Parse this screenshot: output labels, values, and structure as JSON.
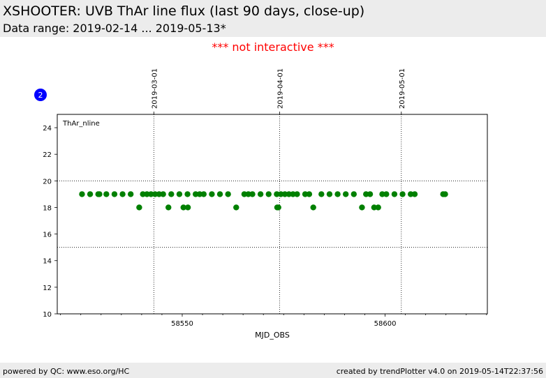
{
  "header": {
    "title": "XSHOOTER: UVB ThAr line flux (last 90 days, close-up)",
    "subtitle": "Data range: 2019-02-14 ... 2019-05-13*"
  },
  "notice": "*** not interactive ***",
  "footer": {
    "left": "powered by QC: www.eso.org/HC",
    "right": "created by trendPlotter v4.0 on 2019-05-14T22:37:56"
  },
  "badge": "2",
  "colors": {
    "points": "#008000",
    "badge": "#0000ff",
    "notice": "#ff0000"
  },
  "chart_data": {
    "type": "scatter",
    "panel_label": "ThAr_nline",
    "xlabel": "MJD_OBS",
    "ylabel": "",
    "xlim": [
      58519.2,
      58625.2
    ],
    "ylim": [
      10,
      25
    ],
    "x_ticks": [
      58550,
      58600
    ],
    "y_ticks": [
      10,
      12,
      14,
      16,
      18,
      20,
      22,
      24
    ],
    "top_date_ticks": [
      {
        "label": "2019-03-01",
        "x": 58543
      },
      {
        "label": "2019-04-01",
        "x": 58574
      },
      {
        "label": "2019-05-01",
        "x": 58604
      }
    ],
    "reference_lines": [
      20,
      15
    ],
    "series": [
      {
        "points": [
          [
            58525.3,
            19
          ],
          [
            58527.3,
            19
          ],
          [
            58529.3,
            19
          ],
          [
            58529.6,
            19
          ],
          [
            58531.3,
            19
          ],
          [
            58533.3,
            19
          ],
          [
            58535.3,
            19
          ],
          [
            58537.3,
            19
          ],
          [
            58539.4,
            18
          ],
          [
            58540.3,
            19
          ],
          [
            58541.3,
            19
          ],
          [
            58542.3,
            19
          ],
          [
            58543.3,
            19
          ],
          [
            58544.3,
            19
          ],
          [
            58545.3,
            19
          ],
          [
            58546.6,
            18
          ],
          [
            58547.3,
            19
          ],
          [
            58549.3,
            19
          ],
          [
            58550.3,
            18
          ],
          [
            58551.3,
            19
          ],
          [
            58551.4,
            18
          ],
          [
            58553.3,
            19
          ],
          [
            58554.3,
            19
          ],
          [
            58555.3,
            19
          ],
          [
            58557.3,
            19
          ],
          [
            58559.3,
            19
          ],
          [
            58561.3,
            19
          ],
          [
            58563.3,
            18
          ],
          [
            58565.3,
            19
          ],
          [
            58566.3,
            19
          ],
          [
            58567.3,
            19
          ],
          [
            58569.3,
            19
          ],
          [
            58571.3,
            19
          ],
          [
            58573.3,
            19
          ],
          [
            58573.4,
            18
          ],
          [
            58573.7,
            18
          ],
          [
            58574.3,
            19
          ],
          [
            58575.3,
            19
          ],
          [
            58576.3,
            19
          ],
          [
            58577.3,
            19
          ],
          [
            58578.3,
            19
          ],
          [
            58580.3,
            19
          ],
          [
            58581.3,
            19
          ],
          [
            58582.3,
            18
          ],
          [
            58584.3,
            19
          ],
          [
            58586.3,
            19
          ],
          [
            58588.3,
            19
          ],
          [
            58590.3,
            19
          ],
          [
            58592.3,
            19
          ],
          [
            58594.3,
            18
          ],
          [
            58595.3,
            19
          ],
          [
            58596.3,
            19
          ],
          [
            58597.3,
            18
          ],
          [
            58598.3,
            18
          ],
          [
            58599.3,
            19
          ],
          [
            58600.3,
            19
          ],
          [
            58602.3,
            19
          ],
          [
            58604.3,
            19
          ],
          [
            58606.3,
            19
          ],
          [
            58607.3,
            19
          ],
          [
            58614.3,
            19
          ],
          [
            58614.8,
            19
          ]
        ]
      }
    ]
  }
}
